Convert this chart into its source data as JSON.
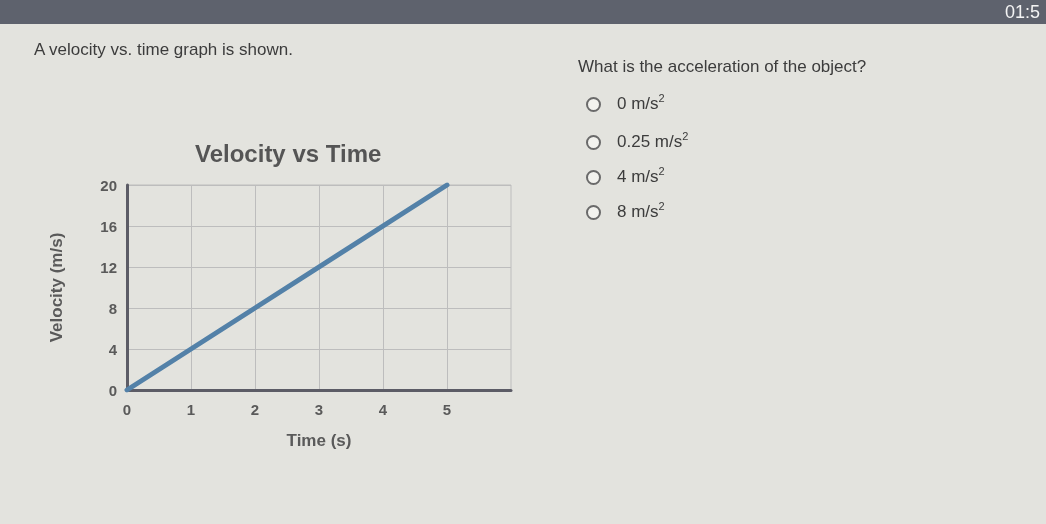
{
  "chart_data": {
    "type": "line",
    "title": "Velocity vs Time",
    "xlabel": "Time (s)",
    "ylabel": "Velocity (m/s)",
    "x": [
      0,
      5
    ],
    "values": [
      0,
      20
    ],
    "color": "#5381a8",
    "xlim": [
      0,
      6
    ],
    "xticks": [
      0,
      1,
      2,
      3,
      4,
      5
    ],
    "ylim": [
      0,
      20
    ],
    "yticks": [
      0,
      4,
      8,
      12,
      16,
      20
    ],
    "grid": true,
    "marker": "none",
    "line_style": "solid",
    "annotations": [
      "A velocity vs. time graph is shown.",
      "What is the acceleration of the object?",
      "0 m/s$^{2}$",
      "0.25 m/s$^{2}$",
      "4 m/s$^{2}$",
      "8 m/s$^{2}$",
      "01:5"
    ]
  }
}
